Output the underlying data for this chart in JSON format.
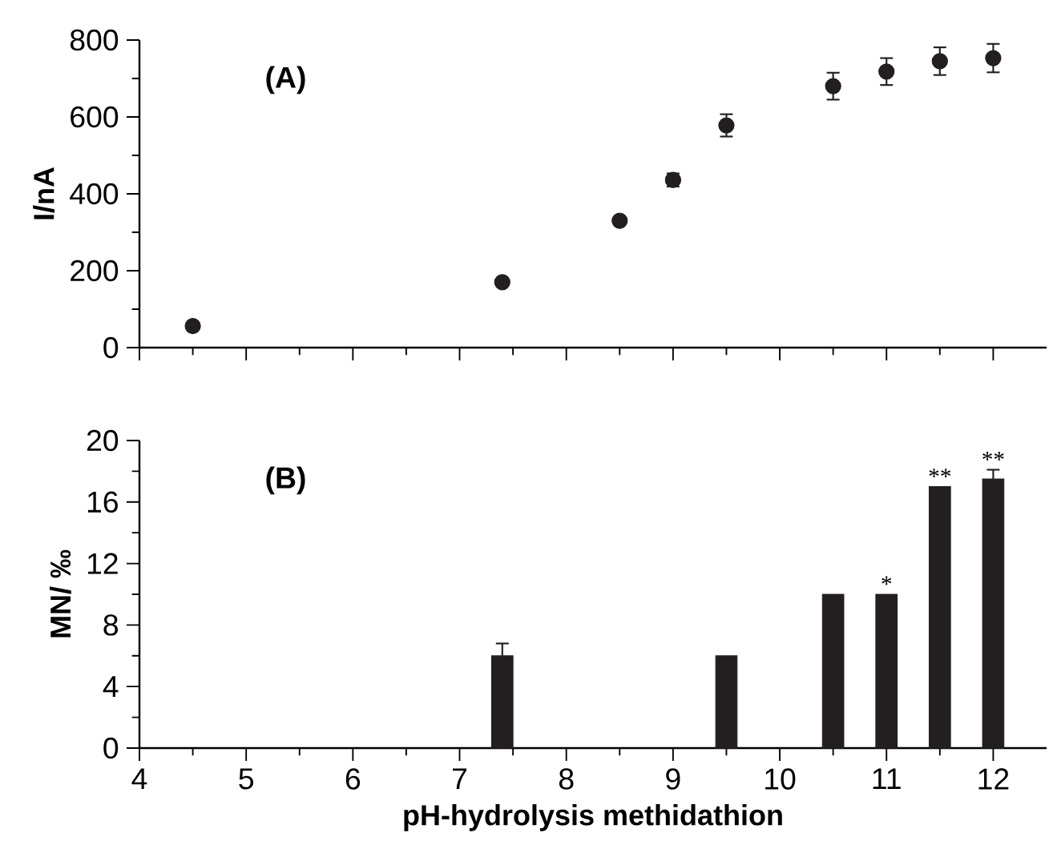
{
  "chart_data": [
    {
      "type": "scatter",
      "title": "(A)",
      "ylabel": "I/nA",
      "x": [
        4.5,
        7.4,
        8.5,
        9,
        9.5,
        10.5,
        11,
        11.5,
        12
      ],
      "values": [
        56,
        170,
        330,
        436,
        578,
        680,
        718,
        745,
        753
      ],
      "errors": [
        null,
        null,
        null,
        17,
        29,
        35,
        35,
        36,
        37
      ],
      "color": "#231f20",
      "xlim": [
        4,
        12.5
      ],
      "xticks": [
        4,
        5,
        6,
        7,
        8,
        9,
        10,
        11,
        12
      ],
      "ylim": [
        0,
        800
      ],
      "yticks": [
        0,
        200,
        400,
        600,
        800
      ],
      "tick_labels": "y"
    },
    {
      "type": "bar",
      "title": "(B)",
      "xlabel": "pH-hydrolysis methidathion",
      "ylabel": "MN/ ‰",
      "x": [
        7.4,
        9.5,
        10.5,
        11,
        11.5,
        12
      ],
      "values": [
        6,
        6,
        10,
        10,
        17,
        17.5
      ],
      "errors": [
        [
          6,
          6.8
        ],
        null,
        null,
        null,
        null,
        [
          17.5,
          18.1
        ]
      ],
      "color": "#231f20",
      "xlim": [
        4,
        12.5
      ],
      "xticks": [
        4,
        5,
        6,
        7,
        8,
        9,
        10,
        11,
        12
      ],
      "ylim": [
        0,
        20
      ],
      "yticks": [
        0,
        4,
        8,
        12,
        16,
        20
      ],
      "annotations": [
        {
          "text": "*",
          "x": 11,
          "y": 10
        },
        {
          "text": "**",
          "x": 11.5,
          "y": 17
        },
        {
          "text": "**",
          "x": 12,
          "y": 18.1
        }
      ]
    }
  ]
}
